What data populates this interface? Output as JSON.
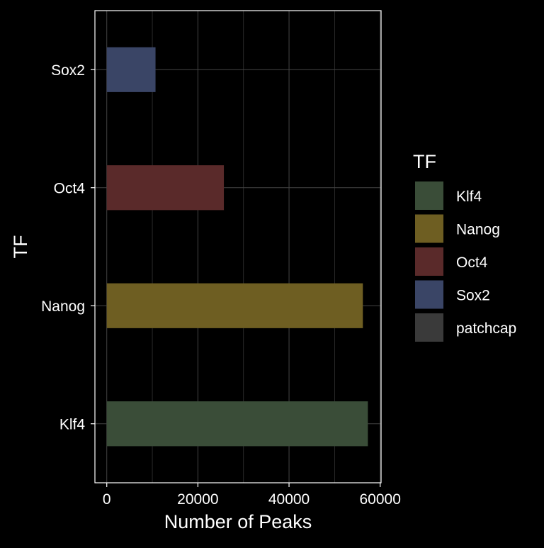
{
  "chart_data": {
    "type": "bar",
    "orientation": "horizontal",
    "categories": [
      "Sox2",
      "Oct4",
      "Nanog",
      "Klf4"
    ],
    "values": [
      10700,
      25700,
      56200,
      57300
    ],
    "colors": [
      "#3a4566",
      "#5a2a2a",
      "#6e5e22",
      "#3a4d38"
    ],
    "xlabel": "Number of Peaks",
    "ylabel": "TF",
    "xlim": [
      -2600,
      60200
    ],
    "x_ticks": [
      0,
      20000,
      40000,
      60000
    ],
    "grid": true,
    "legend": {
      "title": "TF",
      "placement": "right",
      "entries": [
        {
          "label": "Klf4",
          "color": "#3a4d38"
        },
        {
          "label": "Nanog",
          "color": "#6e5e22"
        },
        {
          "label": "Oct4",
          "color": "#5a2a2a"
        },
        {
          "label": "Sox2",
          "color": "#3a4566"
        },
        {
          "label": "patchcap",
          "color": "#3a3a3a"
        }
      ]
    }
  }
}
